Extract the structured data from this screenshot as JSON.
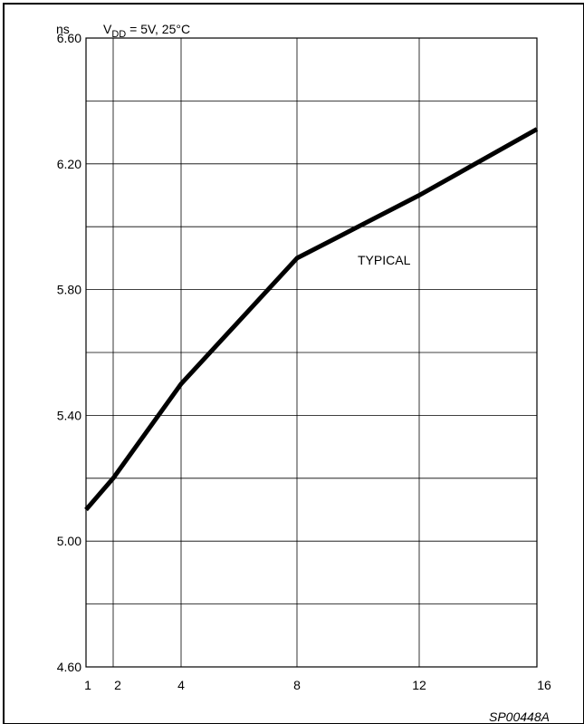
{
  "chart_data": {
    "type": "line",
    "y_unit": "ns",
    "condition": {
      "prefix": "V",
      "subscript": "DD",
      "suffix": " = 5V, 25°C"
    },
    "x_ticks": [
      1,
      2,
      4,
      8,
      12,
      16
    ],
    "x_tick_labels": [
      "1",
      "2",
      "4",
      "8",
      "12",
      "16"
    ],
    "y_ticks": [
      4.6,
      5.0,
      5.4,
      5.8,
      6.2,
      6.6
    ],
    "y_tick_labels": [
      "4.60",
      "5.00",
      "5.40",
      "5.80",
      "6.20",
      "6.60"
    ],
    "y_minor_gridlines": [
      4.8,
      5.2,
      5.6,
      6.0,
      6.4
    ],
    "ylim": [
      4.6,
      6.6
    ],
    "grid": true,
    "series": [
      {
        "name": "TYPICAL",
        "x": [
          1,
          2,
          4,
          8,
          12,
          16
        ],
        "y": [
          5.1,
          5.2,
          5.5,
          5.9,
          6.1,
          6.31
        ]
      }
    ],
    "annotation": "TYPICAL",
    "figure_id": "SP00448A"
  }
}
